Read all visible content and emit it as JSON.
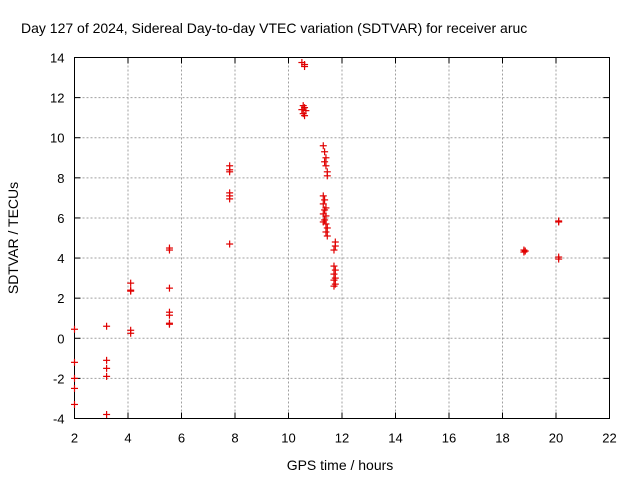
{
  "chart_data": {
    "type": "scatter",
    "title": "Day 127 of 2024, Sidereal Day-to-day VTEC variation (SDTVAR) for receiver aruc",
    "xlabel": "GPS time / hours",
    "ylabel": "SDTVAR / TECUs",
    "xlim": [
      2,
      22
    ],
    "ylim": [
      -4,
      14
    ],
    "xticks": [
      2,
      4,
      6,
      8,
      10,
      12,
      14,
      16,
      18,
      20,
      22
    ],
    "yticks": [
      -4,
      -2,
      0,
      2,
      4,
      6,
      8,
      10,
      12,
      14
    ],
    "grid": true,
    "marker": "plus",
    "color": "#e00000",
    "series": [
      {
        "name": "aruc",
        "points": [
          [
            2.0,
            0.45
          ],
          [
            2.0,
            -1.2
          ],
          [
            2.0,
            -2.0
          ],
          [
            2.0,
            -2.5
          ],
          [
            2.0,
            -3.3
          ],
          [
            3.2,
            0.6
          ],
          [
            3.2,
            -1.1
          ],
          [
            3.2,
            -1.5
          ],
          [
            3.2,
            -1.9
          ],
          [
            3.2,
            -3.8
          ],
          [
            4.1,
            2.75
          ],
          [
            4.1,
            2.4
          ],
          [
            4.1,
            2.35
          ],
          [
            4.1,
            0.4
          ],
          [
            4.1,
            0.25
          ],
          [
            5.55,
            4.5
          ],
          [
            5.55,
            4.4
          ],
          [
            5.55,
            2.5
          ],
          [
            5.55,
            1.3
          ],
          [
            5.55,
            1.15
          ],
          [
            5.55,
            0.75
          ],
          [
            5.55,
            0.7
          ],
          [
            7.8,
            8.6
          ],
          [
            7.8,
            8.4
          ],
          [
            7.8,
            8.3
          ],
          [
            7.8,
            7.25
          ],
          [
            7.8,
            7.1
          ],
          [
            7.8,
            6.95
          ],
          [
            7.8,
            4.7
          ],
          [
            10.5,
            13.75
          ],
          [
            10.6,
            13.65
          ],
          [
            10.6,
            13.55
          ],
          [
            10.55,
            11.6
          ],
          [
            10.6,
            11.5
          ],
          [
            10.5,
            11.4
          ],
          [
            10.65,
            11.35
          ],
          [
            10.55,
            11.2
          ],
          [
            10.6,
            11.1
          ],
          [
            11.3,
            9.6
          ],
          [
            11.35,
            9.3
          ],
          [
            11.4,
            9.0
          ],
          [
            11.35,
            8.8
          ],
          [
            11.4,
            8.6
          ],
          [
            11.45,
            8.3
          ],
          [
            11.45,
            8.1
          ],
          [
            11.3,
            7.1
          ],
          [
            11.35,
            6.9
          ],
          [
            11.3,
            6.7
          ],
          [
            11.4,
            6.5
          ],
          [
            11.35,
            6.4
          ],
          [
            11.3,
            6.2
          ],
          [
            11.4,
            6.1
          ],
          [
            11.35,
            5.9
          ],
          [
            11.3,
            5.8
          ],
          [
            11.4,
            5.7
          ],
          [
            11.45,
            5.5
          ],
          [
            11.4,
            5.3
          ],
          [
            11.45,
            5.1
          ],
          [
            11.75,
            4.8
          ],
          [
            11.75,
            4.6
          ],
          [
            11.7,
            4.4
          ],
          [
            11.7,
            3.6
          ],
          [
            11.75,
            3.4
          ],
          [
            11.7,
            3.2
          ],
          [
            11.75,
            3.0
          ],
          [
            11.7,
            2.9
          ],
          [
            11.75,
            2.7
          ],
          [
            11.7,
            2.6
          ],
          [
            18.8,
            4.4
          ],
          [
            18.85,
            4.35
          ],
          [
            18.8,
            4.3
          ],
          [
            20.1,
            5.85
          ],
          [
            20.1,
            5.8
          ],
          [
            20.1,
            4.05
          ],
          [
            20.1,
            3.95
          ]
        ]
      }
    ]
  }
}
